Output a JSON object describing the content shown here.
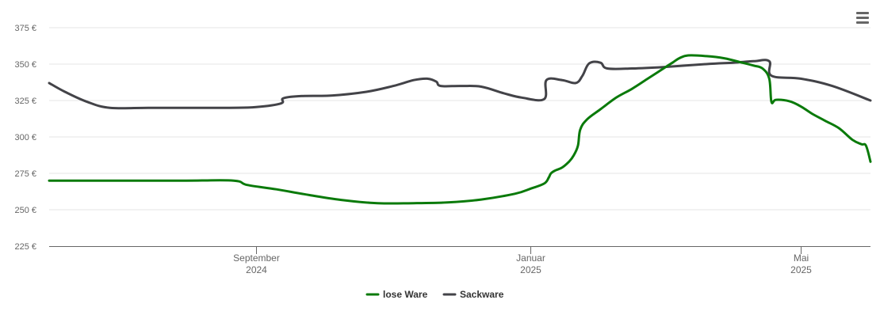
{
  "chart_data": {
    "type": "line",
    "y_axis": {
      "ylim": [
        225,
        375
      ],
      "ticks": [
        {
          "value": 225,
          "label": "225 €"
        },
        {
          "value": 250,
          "label": "250 €"
        },
        {
          "value": 275,
          "label": "275 €"
        },
        {
          "value": 300,
          "label": "300 €"
        },
        {
          "value": 325,
          "label": "325 €"
        },
        {
          "value": 350,
          "label": "350 €"
        },
        {
          "value": 375,
          "label": "375 €"
        }
      ]
    },
    "x_axis": {
      "xlim": [
        "2024-06-01",
        "2025-06-01"
      ],
      "ticks": [
        {
          "value": "2024-09-01",
          "label": "September",
          "sublabel": "2024"
        },
        {
          "value": "2025-01-01",
          "label": "Januar",
          "sublabel": "2025"
        },
        {
          "value": "2025-05-01",
          "label": "Mai",
          "sublabel": "2025"
        }
      ]
    },
    "grid": true,
    "legend": "bottom-center",
    "series": [
      {
        "name": "lose Ware",
        "color": "#0a7a0a",
        "points": [
          [
            "2024-06-01",
            270
          ],
          [
            "2024-07-01",
            270
          ],
          [
            "2024-08-01",
            270
          ],
          [
            "2024-08-22",
            270
          ],
          [
            "2024-08-28",
            267
          ],
          [
            "2024-09-10",
            264
          ],
          [
            "2024-09-25",
            260
          ],
          [
            "2024-10-10",
            256.5
          ],
          [
            "2024-10-25",
            254.5
          ],
          [
            "2024-11-10",
            254.5
          ],
          [
            "2024-11-25",
            255
          ],
          [
            "2024-12-10",
            257
          ],
          [
            "2024-12-25",
            261
          ],
          [
            "2025-01-01",
            264.5
          ],
          [
            "2025-01-07",
            268
          ],
          [
            "2025-01-09",
            272
          ],
          [
            "2025-01-10",
            275
          ],
          [
            "2025-01-12",
            277
          ],
          [
            "2025-01-15",
            279
          ],
          [
            "2025-01-18",
            283
          ],
          [
            "2025-01-20",
            287
          ],
          [
            "2025-01-22",
            294
          ],
          [
            "2025-01-23",
            305
          ],
          [
            "2025-01-26",
            312
          ],
          [
            "2025-02-01",
            319
          ],
          [
            "2025-02-08",
            327
          ],
          [
            "2025-02-15",
            333
          ],
          [
            "2025-02-22",
            340
          ],
          [
            "2025-02-28",
            346
          ],
          [
            "2025-03-05",
            351
          ],
          [
            "2025-03-08",
            354
          ],
          [
            "2025-03-12",
            356
          ],
          [
            "2025-03-20",
            355.5
          ],
          [
            "2025-03-28",
            354
          ],
          [
            "2025-04-05",
            351
          ],
          [
            "2025-04-10",
            349
          ],
          [
            "2025-04-14",
            347
          ],
          [
            "2025-04-17",
            340
          ],
          [
            "2025-04-18",
            324
          ],
          [
            "2025-04-20",
            325.5
          ],
          [
            "2025-04-26",
            324.5
          ],
          [
            "2025-05-01",
            321
          ],
          [
            "2025-05-06",
            316
          ],
          [
            "2025-05-12",
            311
          ],
          [
            "2025-05-18",
            306
          ],
          [
            "2025-05-24",
            298
          ],
          [
            "2025-05-28",
            295
          ],
          [
            "2025-05-30",
            294
          ],
          [
            "2025-06-01",
            283
          ]
        ]
      },
      {
        "name": "Sackware",
        "color": "#434348",
        "points": [
          [
            "2024-06-01",
            337
          ],
          [
            "2024-06-08",
            331
          ],
          [
            "2024-06-18",
            324
          ],
          [
            "2024-06-28",
            320
          ],
          [
            "2024-07-15",
            320
          ],
          [
            "2024-08-01",
            320
          ],
          [
            "2024-08-20",
            320
          ],
          [
            "2024-09-01",
            320.5
          ],
          [
            "2024-09-12",
            323
          ],
          [
            "2024-09-13",
            326.5
          ],
          [
            "2024-09-20",
            328
          ],
          [
            "2024-10-05",
            328.5
          ],
          [
            "2024-10-20",
            331
          ],
          [
            "2024-11-01",
            335
          ],
          [
            "2024-11-10",
            339
          ],
          [
            "2024-11-16",
            340
          ],
          [
            "2024-11-20",
            338
          ],
          [
            "2024-11-22",
            335
          ],
          [
            "2024-12-01",
            335
          ],
          [
            "2024-12-10",
            334.5
          ],
          [
            "2024-12-20",
            330
          ],
          [
            "2024-12-28",
            327
          ],
          [
            "2025-01-07",
            326
          ],
          [
            "2025-01-08",
            339
          ],
          [
            "2025-01-15",
            339
          ],
          [
            "2025-01-21",
            337
          ],
          [
            "2025-01-24",
            342
          ],
          [
            "2025-01-27",
            350.5
          ],
          [
            "2025-02-01",
            351
          ],
          [
            "2025-02-04",
            347
          ],
          [
            "2025-02-15",
            347
          ],
          [
            "2025-03-01",
            348
          ],
          [
            "2025-03-20",
            350
          ],
          [
            "2025-04-01",
            351
          ],
          [
            "2025-04-10",
            352
          ],
          [
            "2025-04-17",
            352
          ],
          [
            "2025-04-18",
            342
          ],
          [
            "2025-05-01",
            340
          ],
          [
            "2025-05-15",
            335
          ],
          [
            "2025-06-01",
            325
          ]
        ]
      }
    ]
  },
  "icons": {
    "menu": "hamburger-menu-icon"
  }
}
